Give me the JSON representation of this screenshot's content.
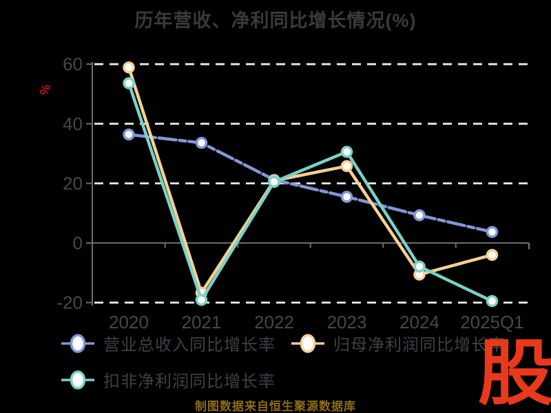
{
  "title": "历年营收、净利同比增长情况(%)",
  "caption": "制图数据来自恒生聚源数据库",
  "logo": {
    "char": "股"
  },
  "colors": {
    "background": "#000000",
    "title_text": "#3a3a3a",
    "tick_label": "#474749",
    "axis": "#6e6e6e",
    "grid": "#ececec",
    "unit_label": "#c41114",
    "legend_text": "#3d4045",
    "caption_text": "#8e6c16",
    "logo_red": "#e9391c",
    "marker_fill": "#ffffff",
    "revenue": "#8297d5",
    "net_profit": "#f6d096",
    "non_gaap": "#79d2c5"
  },
  "chart_data": {
    "type": "line",
    "title": "历年营收、净利同比增长情况(%)",
    "ylabel": "%",
    "xlabel": "",
    "categories": [
      "2020",
      "2021",
      "2022",
      "2023",
      "2024",
      "2025Q1"
    ],
    "series": [
      {
        "name": "营业总收入同比增长率",
        "color_key": "revenue",
        "line_style": "dash-dot",
        "values": [
          36.4,
          33.6,
          21.2,
          15.5,
          9.3,
          3.7
        ]
      },
      {
        "name": "归母净利润同比增长率",
        "color_key": "net_profit",
        "line_style": "solid",
        "values": [
          58.9,
          -16.7,
          20.9,
          25.8,
          -10.6,
          -4.0
        ]
      },
      {
        "name": "扣非净利润同比增长率",
        "color_key": "non_gaap",
        "line_style": "solid",
        "values": [
          53.6,
          -19.1,
          20.5,
          30.6,
          -7.9,
          -19.5
        ]
      }
    ],
    "yticks": [
      60,
      40,
      20,
      0,
      -20
    ],
    "ylim": [
      -24,
      64
    ],
    "grid": "horizontal dashed white lines at 60, 40, 20, -20; solid gray axis line at 0",
    "legend_position": "bottom-left, two rows"
  }
}
